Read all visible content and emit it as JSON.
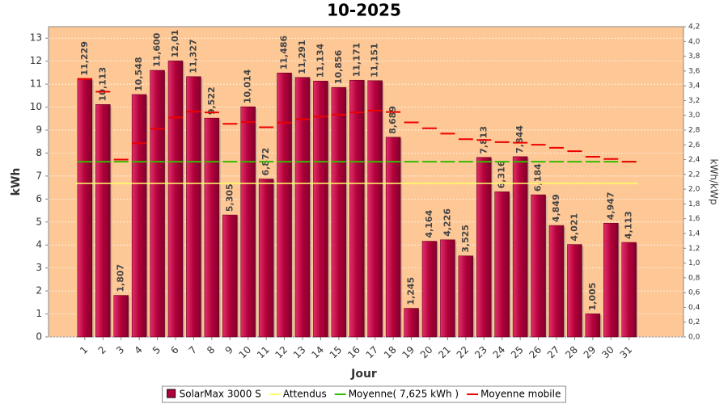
{
  "chart_data": {
    "type": "bar",
    "title": "10-2025",
    "x_label": "Jour",
    "y_label": "kWh",
    "y2_label": "kWh/kWp",
    "categories": [
      "1",
      "2",
      "3",
      "4",
      "5",
      "6",
      "7",
      "8",
      "9",
      "10",
      "11",
      "12",
      "13",
      "14",
      "15",
      "16",
      "17",
      "18",
      "19",
      "20",
      "21",
      "22",
      "23",
      "24",
      "25",
      "26",
      "27",
      "28",
      "29",
      "30",
      "31"
    ],
    "ylim": [
      0,
      13.5
    ],
    "yticks": [
      0,
      1,
      2,
      3,
      4,
      5,
      6,
      7,
      8,
      9,
      10,
      11,
      12,
      13
    ],
    "y2lim": [
      0,
      4.2
    ],
    "y2ticks": [
      {
        "value": 0,
        "label": "0,0"
      },
      {
        "value": 0.2,
        "label": "0,2"
      },
      {
        "value": 0.4,
        "label": "0,4"
      },
      {
        "value": 0.6,
        "label": "0,6"
      },
      {
        "value": 0.8,
        "label": "0,8"
      },
      {
        "value": 1,
        "label": "1,0"
      },
      {
        "value": 1.2,
        "label": "1,2"
      },
      {
        "value": 1.4,
        "label": "1,4"
      },
      {
        "value": 1.6,
        "label": "1,6"
      },
      {
        "value": 1.8,
        "label": "1,8"
      },
      {
        "value": 2,
        "label": "2,0"
      },
      {
        "value": 2.2,
        "label": "2,2"
      },
      {
        "value": 2.4,
        "label": "2,4"
      },
      {
        "value": 2.6,
        "label": "2,6"
      },
      {
        "value": 2.8,
        "label": "2,8"
      },
      {
        "value": 3,
        "label": "3,0"
      },
      {
        "value": 3.2,
        "label": "3,2"
      },
      {
        "value": 3.4,
        "label": "3,4"
      },
      {
        "value": 3.6,
        "label": "3,6"
      },
      {
        "value": 3.8,
        "label": "3,8"
      },
      {
        "value": 4,
        "label": "4,0"
      },
      {
        "value": 4.2,
        "label": "4,2"
      }
    ],
    "grid": true,
    "background": "#fec896",
    "series": [
      {
        "name": "SolarMax 3000 S",
        "style": "bar",
        "color": "#b3003b",
        "values": [
          11.229,
          10.113,
          1.807,
          10.548,
          11.6,
          12.01,
          11.327,
          9.522,
          5.305,
          10.014,
          6.872,
          11.486,
          11.291,
          11.134,
          10.856,
          11.171,
          11.151,
          8.689,
          1.245,
          4.164,
          4.226,
          3.525,
          7.813,
          6.316,
          7.844,
          6.184,
          4.849,
          4.021,
          1.005,
          4.947,
          4.113
        ],
        "value_labels": [
          "11,229",
          "10,113",
          "1,807",
          "10,548",
          "11,600",
          "12,01",
          "11,327",
          "9,522",
          "5,305",
          "10,014",
          "6,872",
          "11,486",
          "11,291",
          "11,134",
          "10,856",
          "11,171",
          "11,151",
          "8,689",
          "1,245",
          "4,164",
          "4,226",
          "3,525",
          "7,813",
          "6,316",
          "7,844",
          "6,184",
          "4,849",
          "4,021",
          "1,005",
          "4,947",
          "4,113"
        ]
      },
      {
        "name": "Attendus",
        "style": "line",
        "color": "#ffff66",
        "values": [
          6.68,
          6.68,
          6.68,
          6.68,
          6.68,
          6.68,
          6.68,
          6.68,
          6.68,
          6.68,
          6.68,
          6.68,
          6.68,
          6.68,
          6.68,
          6.68,
          6.68,
          6.68,
          6.68,
          6.68,
          6.68,
          6.68,
          6.68,
          6.68,
          6.68,
          6.68,
          6.68,
          6.68,
          6.68,
          6.68,
          6.68
        ]
      },
      {
        "name": "Moyenne( 7,625 kWh )",
        "style": "dash",
        "color": "#33bb00",
        "values": [
          7.625,
          7.625,
          7.625,
          7.625,
          7.625,
          7.625,
          7.625,
          7.625,
          7.625,
          7.625,
          7.625,
          7.625,
          7.625,
          7.625,
          7.625,
          7.625,
          7.625,
          7.625,
          7.625,
          7.625,
          7.625,
          7.625,
          7.625,
          7.625,
          7.625,
          7.625,
          7.625,
          7.625,
          7.625,
          7.625,
          7.625
        ]
      },
      {
        "name": "Moyenne mobile",
        "style": "dash",
        "color": "#ee0000",
        "values": [
          11.229,
          10.671,
          7.716,
          8.424,
          9.059,
          9.551,
          9.805,
          9.77,
          9.273,
          9.348,
          9.122,
          9.319,
          9.471,
          9.59,
          9.674,
          9.768,
          9.849,
          9.785,
          9.335,
          9.077,
          8.846,
          8.604,
          8.569,
          8.476,
          8.45,
          8.363,
          8.233,
          8.083,
          7.839,
          7.742,
          7.625
        ]
      }
    ]
  }
}
